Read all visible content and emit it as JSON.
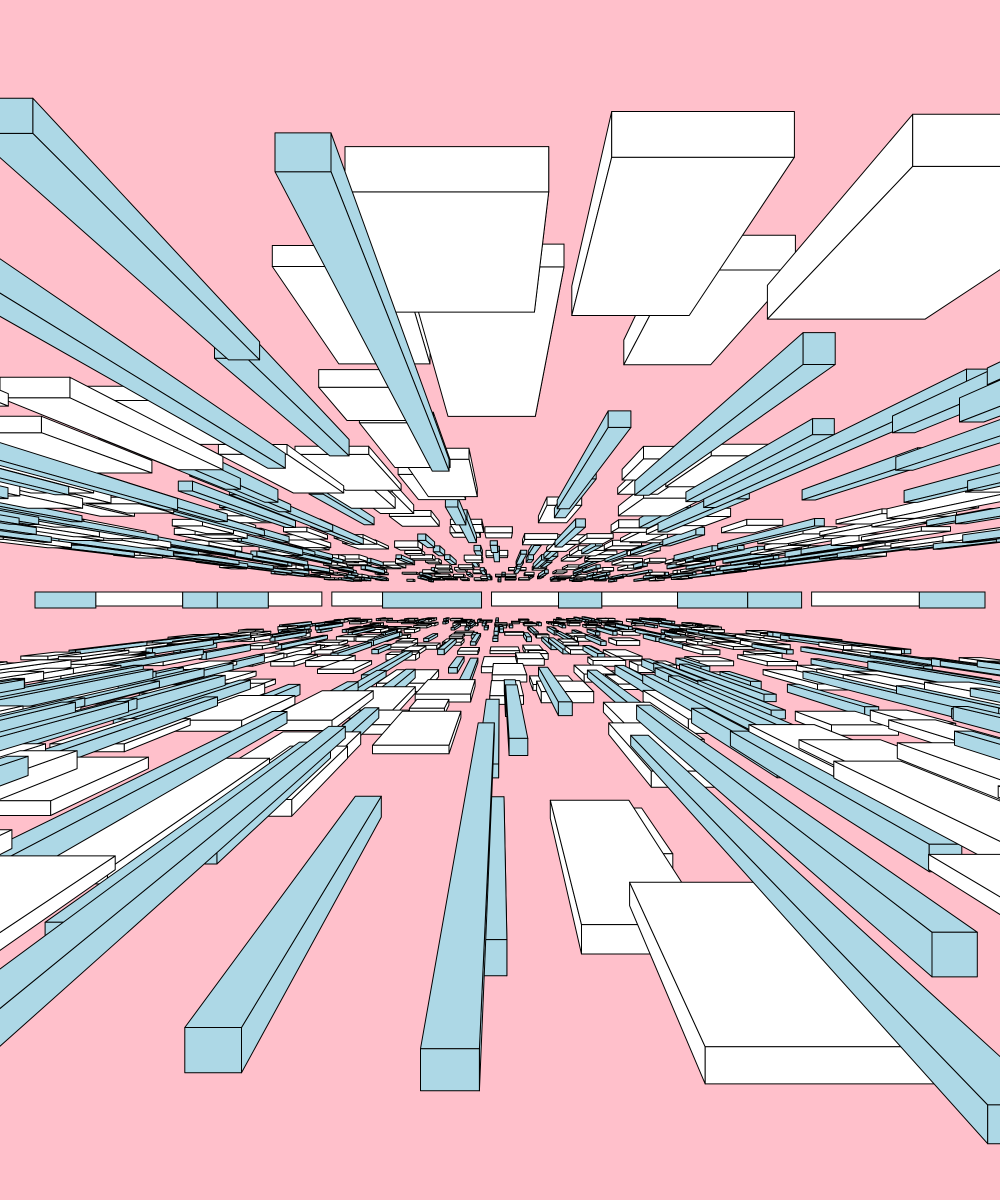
{
  "artwork": {
    "colors": {
      "background": "#ffc0cb",
      "block_light": "#ffffff",
      "block_accent": "#add8e6",
      "outline": "#000000"
    },
    "composition": "perspective-city-ceiling-and-floor"
  }
}
